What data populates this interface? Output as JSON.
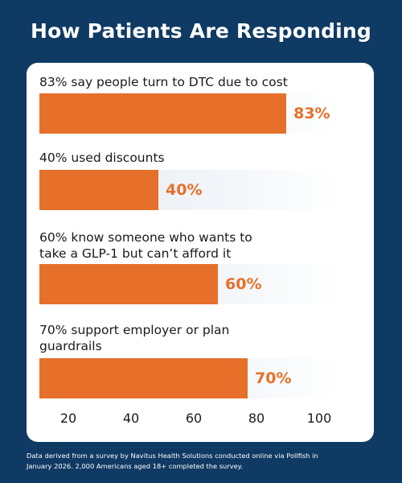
{
  "title": "How Patients Are Responding",
  "footnote_line1": "Data derived from a survey by Navitus Health Solutions conducted online via Pollfish in",
  "footnote_line2": "January 2026. 2,000 Americans aged 18+ completed the survey.",
  "colors": {
    "background": "#0f3a63",
    "bar": "#e6702a",
    "card": "#ffffff"
  },
  "chart_data": {
    "type": "bar",
    "orientation": "horizontal",
    "title": "How Patients Are Responding",
    "xlim": [
      0,
      100
    ],
    "x_ticks": [
      20,
      40,
      60,
      80,
      100
    ],
    "grid": false,
    "categories": [
      "83% say people turn to DTC due to cost",
      "40% used discounts",
      "60% know someone who wants to take a GLP-1 but can’t afford it",
      "70% support employer or plan guardrails"
    ],
    "values": [
      83,
      40,
      60,
      70
    ],
    "value_labels": [
      "83%",
      "40%",
      "60%",
      "70%"
    ],
    "label_lines": [
      [
        "83% say people turn to DTC due to cost"
      ],
      [
        "40% used discounts"
      ],
      [
        "60% know someone who wants to",
        "take a GLP-1 but can’t afford it"
      ],
      [
        "70% support employer or plan",
        "guardrails"
      ]
    ]
  }
}
